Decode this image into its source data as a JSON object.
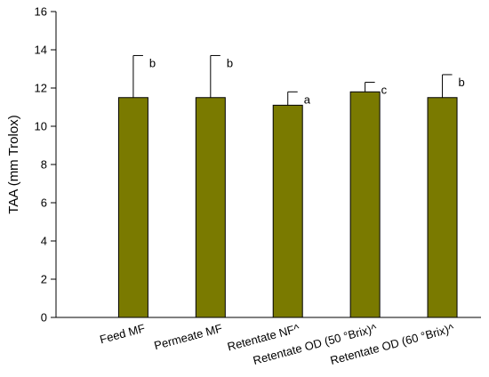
{
  "chart_data": {
    "type": "bar",
    "ylabel": "TAA (mm Trolox)",
    "xlabel": "",
    "ylim": [
      0,
      16
    ],
    "yticks": [
      0,
      2,
      4,
      6,
      8,
      10,
      12,
      14,
      16
    ],
    "grid": false,
    "bar_color": "#7a7a00",
    "categories": [
      "Feed MF",
      "Permeate MF",
      "Retentate NF^",
      "Retentate OD (50 °Brix)^",
      "Retentate OD (60 °Brix)^"
    ],
    "values": [
      11.5,
      11.5,
      11.1,
      11.8,
      11.5
    ],
    "errors": [
      2.2,
      2.2,
      0.7,
      0.5,
      1.2
    ],
    "significance_labels": [
      "b",
      "b",
      "a",
      "c",
      "b"
    ]
  }
}
